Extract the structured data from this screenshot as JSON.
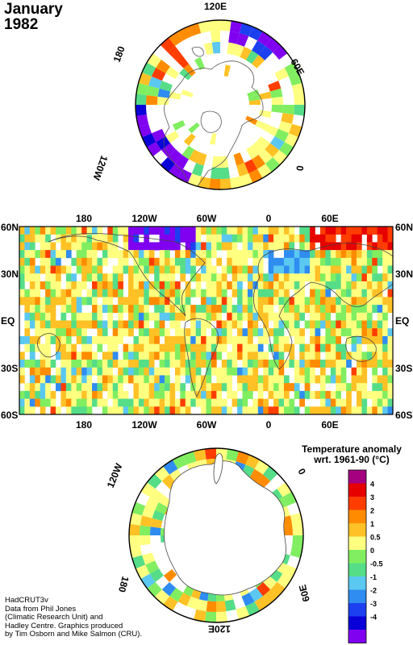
{
  "title": {
    "month": "January",
    "year": "1982"
  },
  "north_polar_labels": {
    "top": "120E",
    "right": "60E",
    "lower_right": "0",
    "left": "180",
    "lower_left": "120W"
  },
  "world_map": {
    "top_labels": [
      "180",
      "120W",
      "60W",
      "0",
      "60E"
    ],
    "bottom_labels": [
      "180",
      "120W",
      "60W",
      "0",
      "60E"
    ],
    "left_labels": [
      "60N",
      "30N",
      "EQ",
      "30S",
      "60S"
    ],
    "right_labels": [
      "60N",
      "30N",
      "EQ",
      "30S",
      "60S"
    ]
  },
  "south_polar_labels": {
    "upper_left": "120W",
    "upper_right": "0",
    "lower_left": "180",
    "lower_right": "60E",
    "bottom": "120E"
  },
  "legend": {
    "title_line1": "Temperature anomaly",
    "title_line2": "wrt. 1961-90  (°C)",
    "labels": [
      "4",
      "3",
      "2",
      "1",
      "0.5",
      "0",
      "-0.5",
      "-1",
      "-2",
      "-3",
      "-4"
    ],
    "colors": [
      "#a50080",
      "#e60000",
      "#ff3d00",
      "#ff8c00",
      "#ffc125",
      "#ffff80",
      "#80ee60",
      "#55dd88",
      "#5ac8f0",
      "#2f8cf0",
      "#1c40f0",
      "#0a00d8",
      "#8000f0"
    ]
  },
  "credits": [
    "HadCRUT3v",
    "Data from Phil Jones",
    "(Climatic Research Unit) and",
    "Hadley Centre.  Graphics produced",
    "by Tim Osborn and Mike Salmon (CRU)."
  ]
}
